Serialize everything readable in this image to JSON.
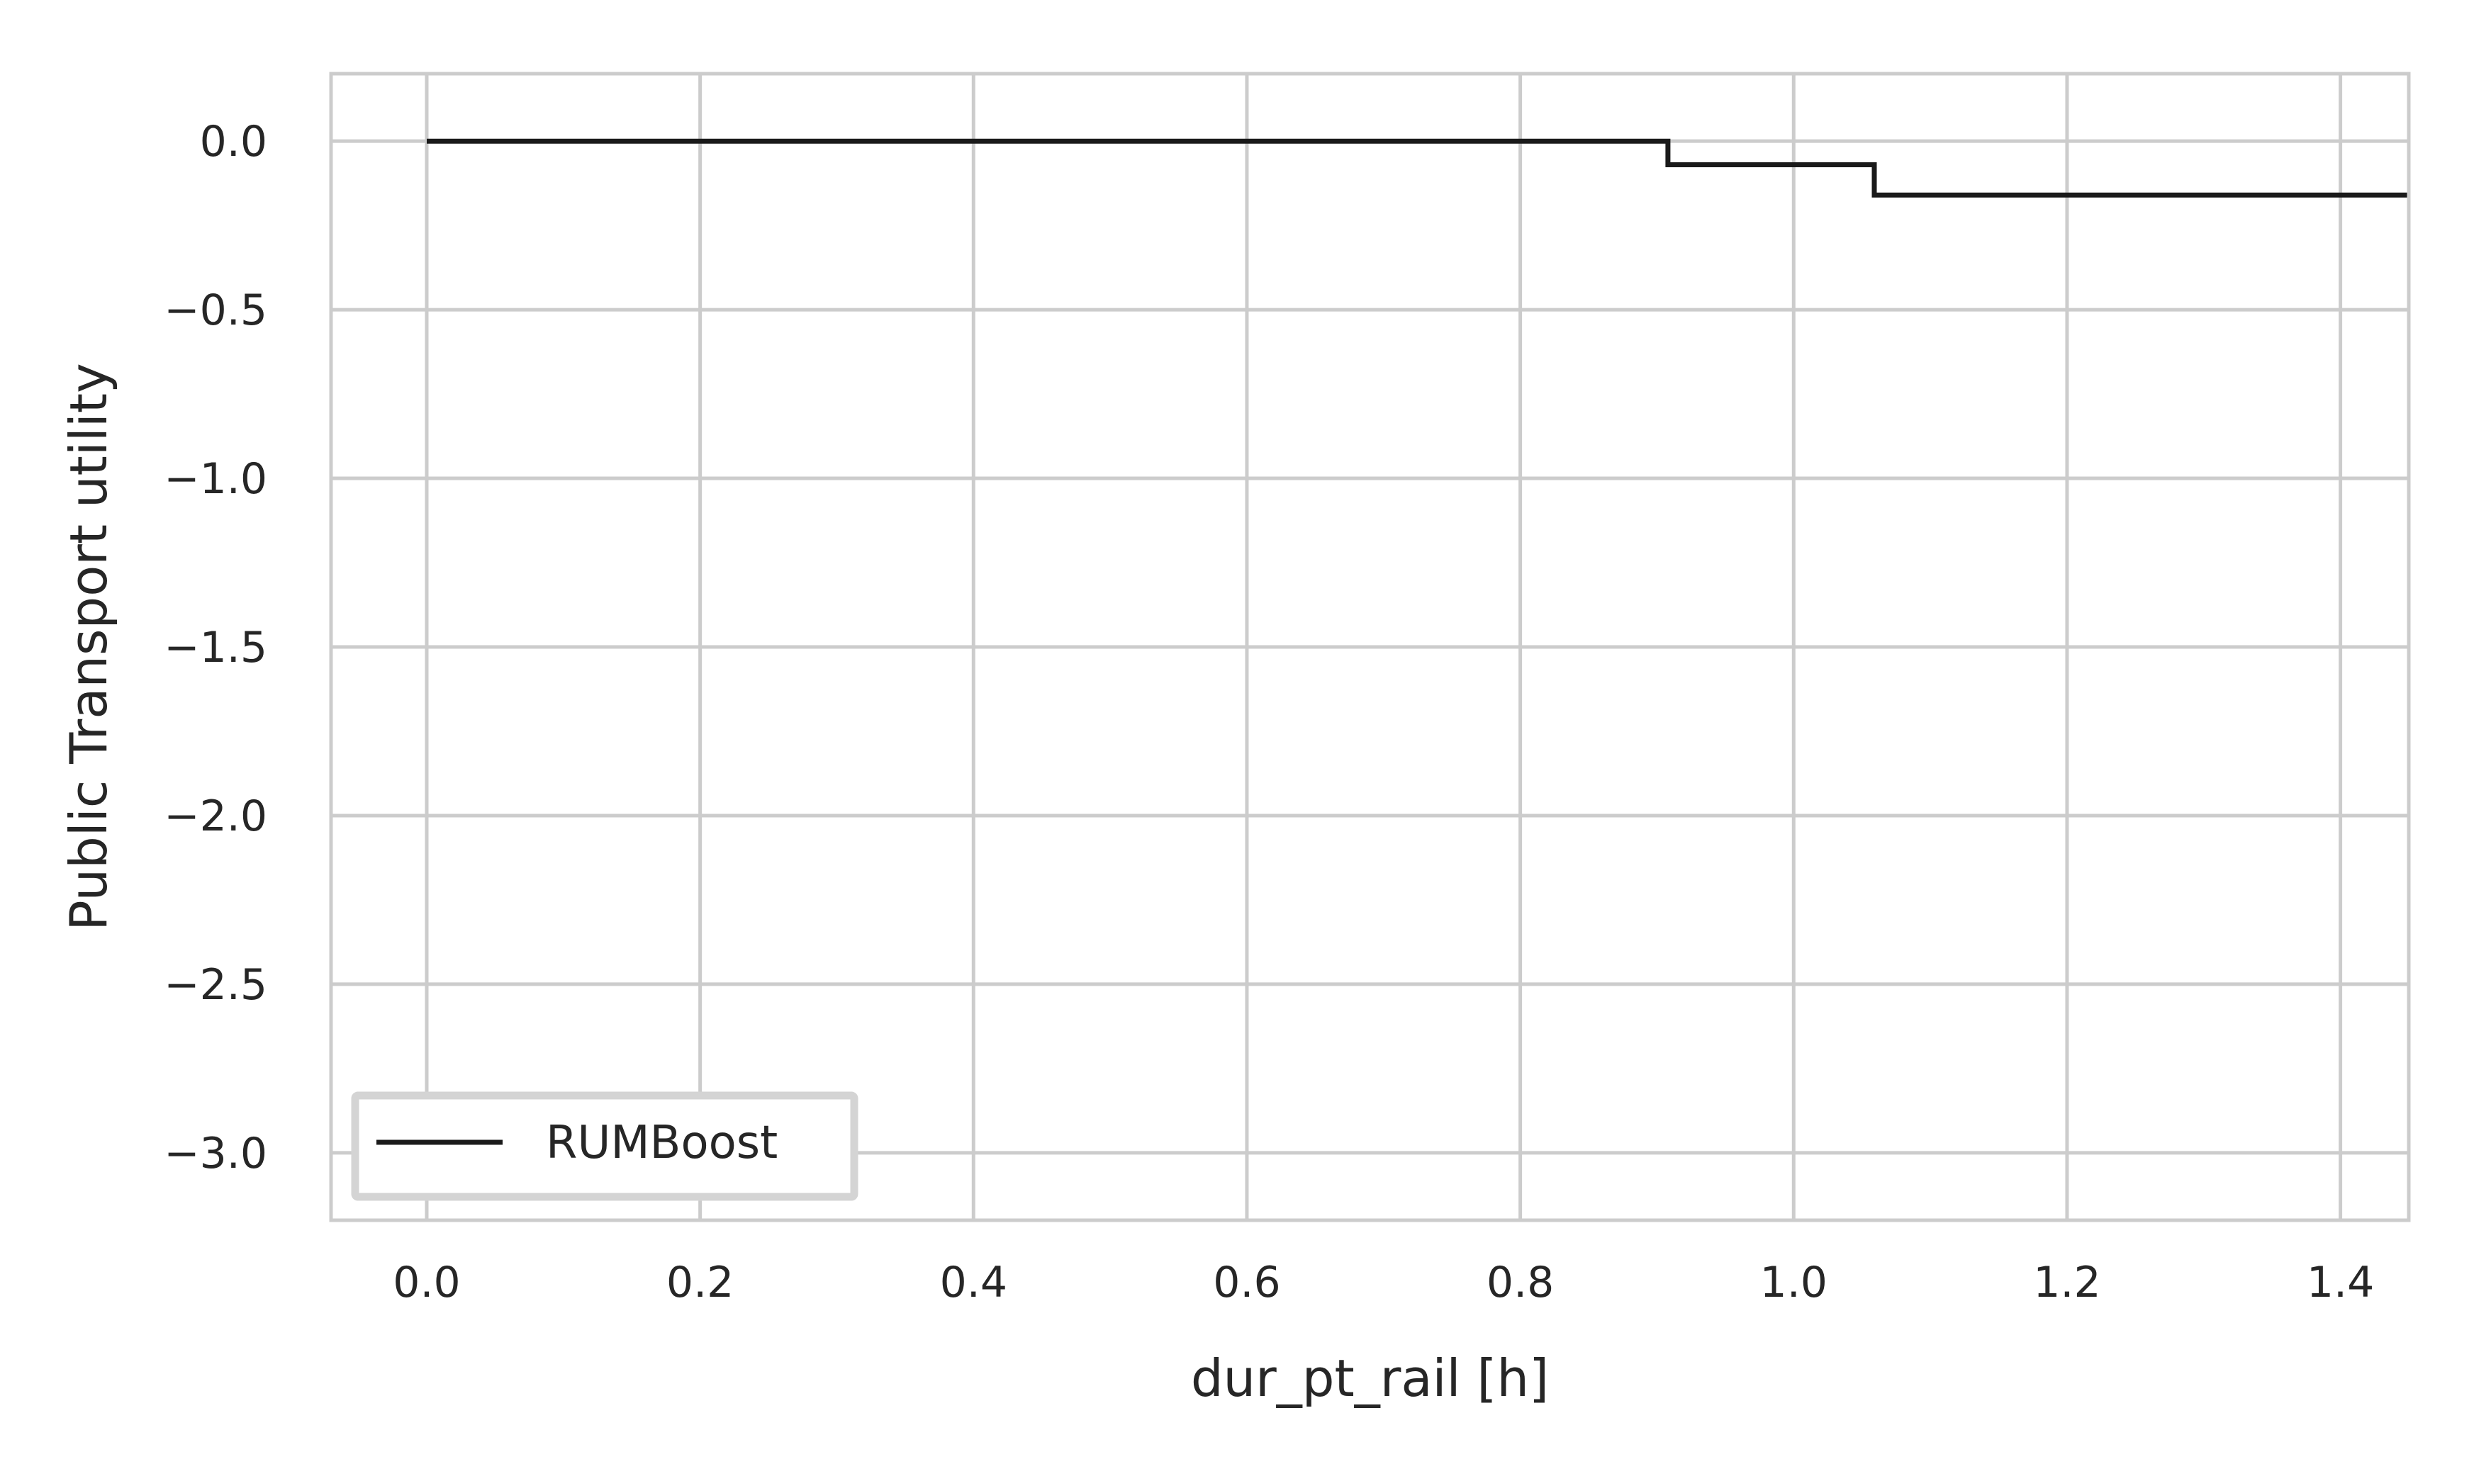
{
  "chart_data": {
    "type": "line",
    "title": "",
    "xlabel": "dur_pt_rail [h]",
    "ylabel": "Public Transport utility",
    "xlim": [
      -0.07,
      1.45
    ],
    "ylim": [
      -3.2,
      0.2
    ],
    "xticks": [
      0.0,
      0.2,
      0.4,
      0.6,
      0.8,
      1.0,
      1.2,
      1.4
    ],
    "xtick_labels": [
      "0.0",
      "0.2",
      "0.4",
      "0.6",
      "0.8",
      "1.0",
      "1.2",
      "1.4"
    ],
    "yticks": [
      0.0,
      -0.5,
      -1.0,
      -1.5,
      -2.0,
      -2.5,
      -3.0
    ],
    "ytick_labels": [
      "0.0",
      "−0.5",
      "−1.0",
      "−1.5",
      "−2.0",
      "−2.5",
      "−3.0"
    ],
    "grid": true,
    "legend_position": "lower-left",
    "series": [
      {
        "name": "RUMBoost",
        "color": "#1a1a1a",
        "step": true,
        "x": [
          0.0,
          0.908,
          0.908,
          1.059,
          1.059,
          1.45
        ],
        "y": [
          0.0,
          0.0,
          -0.07,
          -0.07,
          -0.16,
          -0.16
        ]
      }
    ]
  }
}
